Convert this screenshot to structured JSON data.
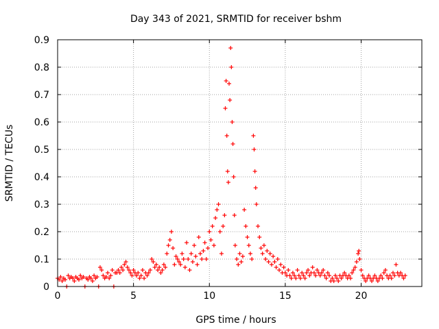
{
  "chart_data": {
    "type": "scatter",
    "title": "Day 343 of 2021, SRMTID for receiver bshm",
    "xlabel": "GPS time / hours",
    "ylabel": "SRMTID / TECUs",
    "xlim": [
      0,
      24
    ],
    "ylim": [
      0,
      0.9
    ],
    "xticks": [
      0,
      5,
      10,
      15,
      20
    ],
    "xtick_labels": [
      "0",
      "5",
      "10",
      "15",
      "20"
    ],
    "yticks": [
      0,
      0.1,
      0.2,
      0.3,
      0.4,
      0.5,
      0.6,
      0.7,
      0.8,
      0.9
    ],
    "ytick_labels": [
      "0",
      "0.1",
      "0.2",
      "0.3",
      "0.4",
      "0.5",
      "0.6",
      "0.7",
      "0.8",
      "0.9"
    ],
    "grid": true,
    "marker": "+",
    "color": "#ff0000",
    "series": [
      {
        "name": "SRMTID",
        "points": [
          [
            0.0,
            0.03
          ],
          [
            0.1,
            0.025
          ],
          [
            0.2,
            0.035
          ],
          [
            0.3,
            0.02
          ],
          [
            0.4,
            0.03
          ],
          [
            0.5,
            0.025
          ],
          [
            0.6,
            0.0
          ],
          [
            0.7,
            0.04
          ],
          [
            0.8,
            0.03
          ],
          [
            0.9,
            0.035
          ],
          [
            1.0,
            0.03
          ],
          [
            1.1,
            0.02
          ],
          [
            1.2,
            0.035
          ],
          [
            1.3,
            0.03
          ],
          [
            1.4,
            0.025
          ],
          [
            1.5,
            0.04
          ],
          [
            1.6,
            0.03
          ],
          [
            1.7,
            0.035
          ],
          [
            1.8,
            0.0
          ],
          [
            1.9,
            0.03
          ],
          [
            2.0,
            0.025
          ],
          [
            2.1,
            0.035
          ],
          [
            2.2,
            0.03
          ],
          [
            2.3,
            0.02
          ],
          [
            2.4,
            0.04
          ],
          [
            2.5,
            0.03
          ],
          [
            2.6,
            0.035
          ],
          [
            2.7,
            0.0
          ],
          [
            2.8,
            0.07
          ],
          [
            2.9,
            0.06
          ],
          [
            3.0,
            0.04
          ],
          [
            3.1,
            0.03
          ],
          [
            3.2,
            0.035
          ],
          [
            3.3,
            0.05
          ],
          [
            3.4,
            0.03
          ],
          [
            3.5,
            0.04
          ],
          [
            3.6,
            0.06
          ],
          [
            3.7,
            0.0
          ],
          [
            3.8,
            0.05
          ],
          [
            3.9,
            0.05
          ],
          [
            4.0,
            0.06
          ],
          [
            4.1,
            0.05
          ],
          [
            4.2,
            0.07
          ],
          [
            4.3,
            0.06
          ],
          [
            4.4,
            0.08
          ],
          [
            4.5,
            0.09
          ],
          [
            4.6,
            0.07
          ],
          [
            4.7,
            0.06
          ],
          [
            4.8,
            0.05
          ],
          [
            4.9,
            0.04
          ],
          [
            5.0,
            0.06
          ],
          [
            5.1,
            0.05
          ],
          [
            5.2,
            0.04
          ],
          [
            5.3,
            0.05
          ],
          [
            5.4,
            0.03
          ],
          [
            5.5,
            0.04
          ],
          [
            5.6,
            0.06
          ],
          [
            5.7,
            0.03
          ],
          [
            5.8,
            0.05
          ],
          [
            5.9,
            0.04
          ],
          [
            6.0,
            0.05
          ],
          [
            6.1,
            0.06
          ],
          [
            6.2,
            0.1
          ],
          [
            6.3,
            0.09
          ],
          [
            6.4,
            0.07
          ],
          [
            6.5,
            0.08
          ],
          [
            6.6,
            0.06
          ],
          [
            6.7,
            0.07
          ],
          [
            6.8,
            0.05
          ],
          [
            6.9,
            0.06
          ],
          [
            7.0,
            0.08
          ],
          [
            7.1,
            0.07
          ],
          [
            7.2,
            0.12
          ],
          [
            7.3,
            0.15
          ],
          [
            7.4,
            0.17
          ],
          [
            7.5,
            0.2
          ],
          [
            7.6,
            0.14
          ],
          [
            7.7,
            0.08
          ],
          [
            7.8,
            0.11
          ],
          [
            7.9,
            0.1
          ],
          [
            8.0,
            0.09
          ],
          [
            8.1,
            0.08
          ],
          [
            8.2,
            0.12
          ],
          [
            8.3,
            0.1
          ],
          [
            8.4,
            0.07
          ],
          [
            8.5,
            0.16
          ],
          [
            8.6,
            0.1
          ],
          [
            8.7,
            0.06
          ],
          [
            8.8,
            0.12
          ],
          [
            8.9,
            0.09
          ],
          [
            9.0,
            0.15
          ],
          [
            9.1,
            0.11
          ],
          [
            9.2,
            0.08
          ],
          [
            9.3,
            0.18
          ],
          [
            9.4,
            0.12
          ],
          [
            9.5,
            0.1
          ],
          [
            9.6,
            0.13
          ],
          [
            9.7,
            0.16
          ],
          [
            9.8,
            0.1
          ],
          [
            9.9,
            0.14
          ],
          [
            10.0,
            0.2
          ],
          [
            10.1,
            0.17
          ],
          [
            10.2,
            0.22
          ],
          [
            10.3,
            0.15
          ],
          [
            10.4,
            0.25
          ],
          [
            10.5,
            0.28
          ],
          [
            10.6,
            0.3
          ],
          [
            10.7,
            0.2
          ],
          [
            10.8,
            0.12
          ],
          [
            10.9,
            0.22
          ],
          [
            11.0,
            0.26
          ],
          [
            11.05,
            0.65
          ],
          [
            11.1,
            0.75
          ],
          [
            11.15,
            0.55
          ],
          [
            11.2,
            0.42
          ],
          [
            11.25,
            0.38
          ],
          [
            11.3,
            0.74
          ],
          [
            11.35,
            0.68
          ],
          [
            11.4,
            0.87
          ],
          [
            11.45,
            0.8
          ],
          [
            11.5,
            0.6
          ],
          [
            11.55,
            0.52
          ],
          [
            11.6,
            0.4
          ],
          [
            11.65,
            0.26
          ],
          [
            11.7,
            0.15
          ],
          [
            11.8,
            0.1
          ],
          [
            11.9,
            0.08
          ],
          [
            12.0,
            0.12
          ],
          [
            12.1,
            0.09
          ],
          [
            12.2,
            0.11
          ],
          [
            12.3,
            0.28
          ],
          [
            12.4,
            0.22
          ],
          [
            12.5,
            0.18
          ],
          [
            12.6,
            0.15
          ],
          [
            12.7,
            0.12
          ],
          [
            12.8,
            0.1
          ],
          [
            12.9,
            0.55
          ],
          [
            12.95,
            0.5
          ],
          [
            13.0,
            0.42
          ],
          [
            13.05,
            0.36
          ],
          [
            13.1,
            0.3
          ],
          [
            13.2,
            0.22
          ],
          [
            13.3,
            0.18
          ],
          [
            13.4,
            0.14
          ],
          [
            13.5,
            0.12
          ],
          [
            13.6,
            0.15
          ],
          [
            13.7,
            0.1
          ],
          [
            13.8,
            0.13
          ],
          [
            13.9,
            0.09
          ],
          [
            14.0,
            0.12
          ],
          [
            14.1,
            0.08
          ],
          [
            14.2,
            0.11
          ],
          [
            14.3,
            0.09
          ],
          [
            14.4,
            0.07
          ],
          [
            14.5,
            0.1
          ],
          [
            14.6,
            0.06
          ],
          [
            14.7,
            0.08
          ],
          [
            14.8,
            0.05
          ],
          [
            14.9,
            0.07
          ],
          [
            15.0,
            0.05
          ],
          [
            15.1,
            0.04
          ],
          [
            15.2,
            0.06
          ],
          [
            15.3,
            0.04
          ],
          [
            15.4,
            0.03
          ],
          [
            15.5,
            0.05
          ],
          [
            15.6,
            0.04
          ],
          [
            15.7,
            0.03
          ],
          [
            15.8,
            0.06
          ],
          [
            15.9,
            0.04
          ],
          [
            16.0,
            0.03
          ],
          [
            16.1,
            0.05
          ],
          [
            16.2,
            0.04
          ],
          [
            16.3,
            0.03
          ],
          [
            16.4,
            0.05
          ],
          [
            16.5,
            0.06
          ],
          [
            16.6,
            0.04
          ],
          [
            16.7,
            0.05
          ],
          [
            16.8,
            0.07
          ],
          [
            16.9,
            0.05
          ],
          [
            17.0,
            0.04
          ],
          [
            17.1,
            0.06
          ],
          [
            17.2,
            0.05
          ],
          [
            17.3,
            0.04
          ],
          [
            17.4,
            0.05
          ],
          [
            17.5,
            0.06
          ],
          [
            17.6,
            0.04
          ],
          [
            17.7,
            0.03
          ],
          [
            17.8,
            0.05
          ],
          [
            17.9,
            0.04
          ],
          [
            18.0,
            0.02
          ],
          [
            18.1,
            0.03
          ],
          [
            18.2,
            0.02
          ],
          [
            18.3,
            0.04
          ],
          [
            18.4,
            0.03
          ],
          [
            18.5,
            0.02
          ],
          [
            18.6,
            0.04
          ],
          [
            18.7,
            0.03
          ],
          [
            18.8,
            0.04
          ],
          [
            18.9,
            0.05
          ],
          [
            19.0,
            0.04
          ],
          [
            19.1,
            0.03
          ],
          [
            19.2,
            0.04
          ],
          [
            19.3,
            0.03
          ],
          [
            19.4,
            0.05
          ],
          [
            19.5,
            0.06
          ],
          [
            19.6,
            0.07
          ],
          [
            19.7,
            0.09
          ],
          [
            19.8,
            0.12
          ],
          [
            19.85,
            0.13
          ],
          [
            19.9,
            0.1
          ],
          [
            20.0,
            0.06
          ],
          [
            20.1,
            0.04
          ],
          [
            20.2,
            0.03
          ],
          [
            20.3,
            0.02
          ],
          [
            20.4,
            0.03
          ],
          [
            20.5,
            0.04
          ],
          [
            20.6,
            0.03
          ],
          [
            20.7,
            0.02
          ],
          [
            20.8,
            0.03
          ],
          [
            20.9,
            0.04
          ],
          [
            21.0,
            0.03
          ],
          [
            21.1,
            0.02
          ],
          [
            21.2,
            0.03
          ],
          [
            21.3,
            0.04
          ],
          [
            21.4,
            0.03
          ],
          [
            21.5,
            0.05
          ],
          [
            21.6,
            0.06
          ],
          [
            21.7,
            0.04
          ],
          [
            21.8,
            0.03
          ],
          [
            21.9,
            0.04
          ],
          [
            22.0,
            0.03
          ],
          [
            22.1,
            0.05
          ],
          [
            22.2,
            0.04
          ],
          [
            22.3,
            0.08
          ],
          [
            22.4,
            0.05
          ],
          [
            22.5,
            0.04
          ],
          [
            22.6,
            0.05
          ],
          [
            22.7,
            0.04
          ],
          [
            22.8,
            0.03
          ],
          [
            22.9,
            0.04
          ]
        ]
      }
    ]
  }
}
